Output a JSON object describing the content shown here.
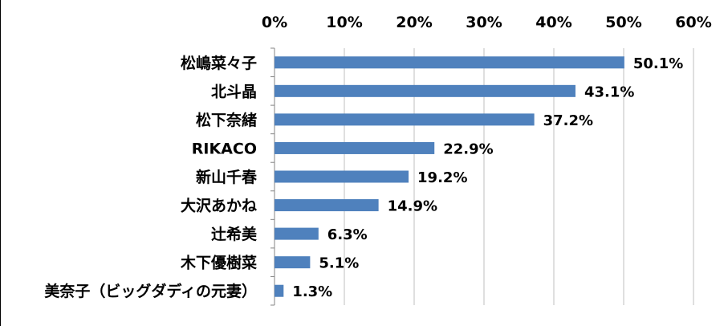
{
  "chart_data": {
    "type": "bar",
    "orientation": "horizontal",
    "categories": [
      "松嶋菜々子",
      "北斗晶",
      "松下奈緒",
      "RIKACO",
      "新山千春",
      "大沢あかね",
      "辻希美",
      "木下優樹菜",
      "美奈子（ビッグダディの元妻）"
    ],
    "values": [
      50.1,
      43.1,
      37.2,
      22.9,
      19.2,
      14.9,
      6.3,
      5.1,
      1.3
    ],
    "value_labels": [
      "50.1%",
      "43.1%",
      "37.2%",
      "22.9%",
      "19.2%",
      "14.9%",
      "6.3%",
      "5.1%",
      "1.3%"
    ],
    "xlim": [
      0,
      60
    ],
    "xticks": [
      0,
      10,
      20,
      30,
      40,
      50,
      60
    ],
    "xtick_labels": [
      "0%",
      "10%",
      "20%",
      "30%",
      "40%",
      "50%",
      "60%"
    ],
    "x_axis_position": "top",
    "grid": true,
    "legend": "none",
    "bar_color": "#4F81BD",
    "grid_color": "#BFBFBF"
  }
}
